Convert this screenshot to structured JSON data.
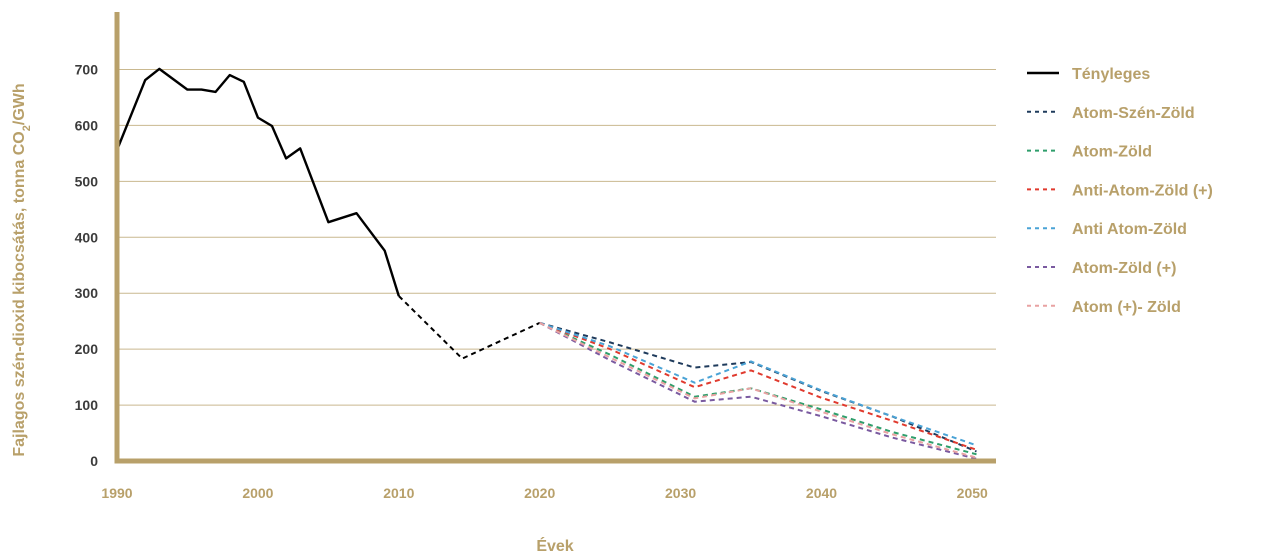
{
  "chart_data": {
    "type": "line",
    "title": "",
    "xlabel": "Évek",
    "ylabel_main": "Fajlagos szén-dioxid kibocsátás, tonna CO",
    "ylabel_sub": "2",
    "ylabel_tail": "/GWh",
    "xlim": [
      1990,
      2051
    ],
    "ylim": [
      0,
      800
    ],
    "xticks": [
      "1990",
      "2000",
      "2010",
      "2020",
      "2030",
      "2040",
      "2050"
    ],
    "yticks": [
      "0",
      "100",
      "200",
      "300",
      "400",
      "500",
      "600",
      "700"
    ],
    "grid": true,
    "legend_position": "right",
    "colors": {
      "axis": "#b8a06a",
      "grid": "#c9b88f",
      "tenyleges": "#000000",
      "atom_szen_zold": "#1f3b5c",
      "atom_zold": "#2e9e6b",
      "anti_atom_zold_plus": "#e03a2e",
      "anti_atom_zold": "#4aa3d6",
      "atom_zold_plus": "#7a5aa0",
      "atom_plus_zold": "#e8a2a2"
    },
    "series": [
      {
        "name": "Tényleges",
        "style": "solid",
        "color": "#000000",
        "x": [
          1990,
          1992,
          1993,
          1995,
          1996,
          1997,
          1998,
          1999,
          2000,
          2001,
          2002,
          2003,
          2005,
          2007,
          2009,
          2010
        ],
        "y": [
          556,
          681,
          701,
          664,
          664,
          660,
          690,
          678,
          614,
          599,
          541,
          559,
          427,
          443,
          376,
          295
        ]
      },
      {
        "name": "",
        "style": "dashed",
        "color": "#000000",
        "x": [
          2010,
          2014.5,
          2020
        ],
        "y": [
          295,
          183,
          247
        ]
      },
      {
        "name": "Atom-Szén-Zöld",
        "style": "dashed",
        "color": "#1f3b5c",
        "x": [
          2020,
          2025,
          2031,
          2035,
          2040,
          2045,
          2051
        ],
        "y": [
          247,
          212,
          167,
          177,
          125,
          80,
          17
        ]
      },
      {
        "name": "Atom-Zöld",
        "style": "dashed",
        "color": "#2e9e6b",
        "x": [
          2020,
          2025,
          2031,
          2035,
          2040,
          2045,
          2051
        ],
        "y": [
          247,
          190,
          115,
          130,
          92,
          52,
          12
        ]
      },
      {
        "name": "Anti-Atom-Zöld (+)",
        "style": "dashed",
        "color": "#e03a2e",
        "x": [
          2020,
          2025,
          2031,
          2035,
          2040,
          2045,
          2051
        ],
        "y": [
          247,
          200,
          132,
          162,
          113,
          72,
          20
        ]
      },
      {
        "name": "Anti Atom-Zöld",
        "style": "dashed",
        "color": "#4aa3d6",
        "x": [
          2020,
          2025,
          2031,
          2035,
          2040,
          2045,
          2051
        ],
        "y": [
          247,
          205,
          140,
          178,
          126,
          80,
          28
        ]
      },
      {
        "name": "Atom-Zöld (+)",
        "style": "dashed",
        "color": "#7a5aa0",
        "x": [
          2020,
          2025,
          2031,
          2035,
          2040,
          2045,
          2051
        ],
        "y": [
          247,
          180,
          106,
          115,
          80,
          42,
          4
        ]
      },
      {
        "name": "Atom (+)- Zöld",
        "style": "dashed",
        "color": "#e8a2a2",
        "x": [
          2020,
          2025,
          2031,
          2035,
          2040,
          2045,
          2051
        ],
        "y": [
          247,
          185,
          112,
          130,
          88,
          48,
          6
        ]
      }
    ]
  }
}
